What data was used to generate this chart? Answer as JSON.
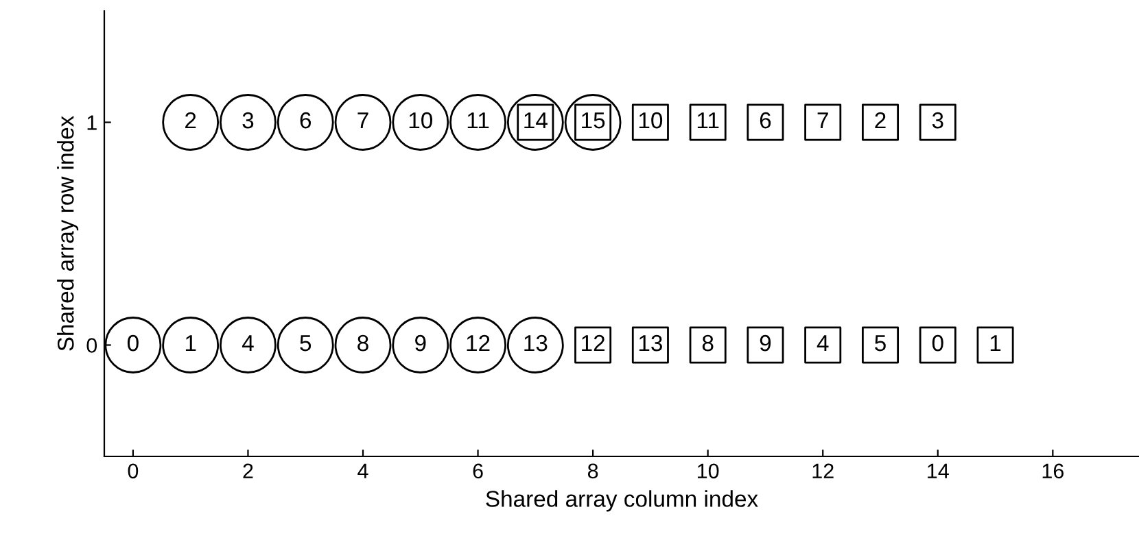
{
  "chart_data": {
    "type": "scatter",
    "xlabel": "Shared array column index",
    "ylabel": "Shared array row index",
    "xlim": [
      -0.5,
      17.5
    ],
    "ylim": [
      -0.5,
      1.5
    ],
    "xticks": [
      0,
      2,
      4,
      6,
      8,
      10,
      12,
      14,
      16
    ],
    "yticks": [
      0,
      1
    ],
    "grid": false,
    "legend": false,
    "series": [
      {
        "marker": "circle",
        "color": "#000000",
        "x": [
          0,
          1,
          2,
          3,
          4,
          5,
          6,
          7
        ],
        "values": [
          0,
          0,
          0,
          0,
          0,
          0,
          0,
          0
        ]
      },
      {
        "marker": "circle",
        "color": "#000000",
        "x": [
          1,
          2,
          3,
          4,
          5,
          6,
          7,
          8
        ],
        "values": [
          1,
          1,
          1,
          1,
          1,
          1,
          1,
          1
        ]
      },
      {
        "marker": "square",
        "color": "#000000",
        "x": [
          8,
          9,
          10,
          11,
          12,
          13,
          14,
          15
        ],
        "values": [
          0,
          0,
          0,
          0,
          0,
          0,
          0,
          0
        ]
      },
      {
        "marker": "square",
        "color": "#000000",
        "x": [
          7,
          8,
          9,
          10,
          11,
          12,
          13,
          14
        ],
        "values": [
          1,
          1,
          1,
          1,
          1,
          1,
          1,
          1
        ]
      }
    ],
    "annotations": [
      {
        "text": "0",
        "x": 0,
        "y": 0
      },
      {
        "text": "1",
        "x": 1,
        "y": 0
      },
      {
        "text": "4",
        "x": 2,
        "y": 0
      },
      {
        "text": "5",
        "x": 3,
        "y": 0
      },
      {
        "text": "8",
        "x": 4,
        "y": 0
      },
      {
        "text": "9",
        "x": 5,
        "y": 0
      },
      {
        "text": "12",
        "x": 6,
        "y": 0
      },
      {
        "text": "13",
        "x": 7,
        "y": 0
      },
      {
        "text": "2",
        "x": 1,
        "y": 1
      },
      {
        "text": "3",
        "x": 2,
        "y": 1
      },
      {
        "text": "6",
        "x": 3,
        "y": 1
      },
      {
        "text": "7",
        "x": 4,
        "y": 1
      },
      {
        "text": "10",
        "x": 5,
        "y": 1
      },
      {
        "text": "11",
        "x": 6,
        "y": 1
      },
      {
        "text": "14",
        "x": 7,
        "y": 1
      },
      {
        "text": "15",
        "x": 8,
        "y": 1
      },
      {
        "text": "12",
        "x": 8,
        "y": 0
      },
      {
        "text": "13",
        "x": 9,
        "y": 0
      },
      {
        "text": "8",
        "x": 10,
        "y": 0
      },
      {
        "text": "9",
        "x": 11,
        "y": 0
      },
      {
        "text": "4",
        "x": 12,
        "y": 0
      },
      {
        "text": "5",
        "x": 13,
        "y": 0
      },
      {
        "text": "0",
        "x": 14,
        "y": 0
      },
      {
        "text": "1",
        "x": 15,
        "y": 0
      },
      {
        "text": "10",
        "x": 9,
        "y": 1
      },
      {
        "text": "11",
        "x": 10,
        "y": 1
      },
      {
        "text": "6",
        "x": 11,
        "y": 1
      },
      {
        "text": "7",
        "x": 12,
        "y": 1
      },
      {
        "text": "2",
        "x": 13,
        "y": 1
      },
      {
        "text": "3",
        "x": 14,
        "y": 1
      }
    ]
  }
}
